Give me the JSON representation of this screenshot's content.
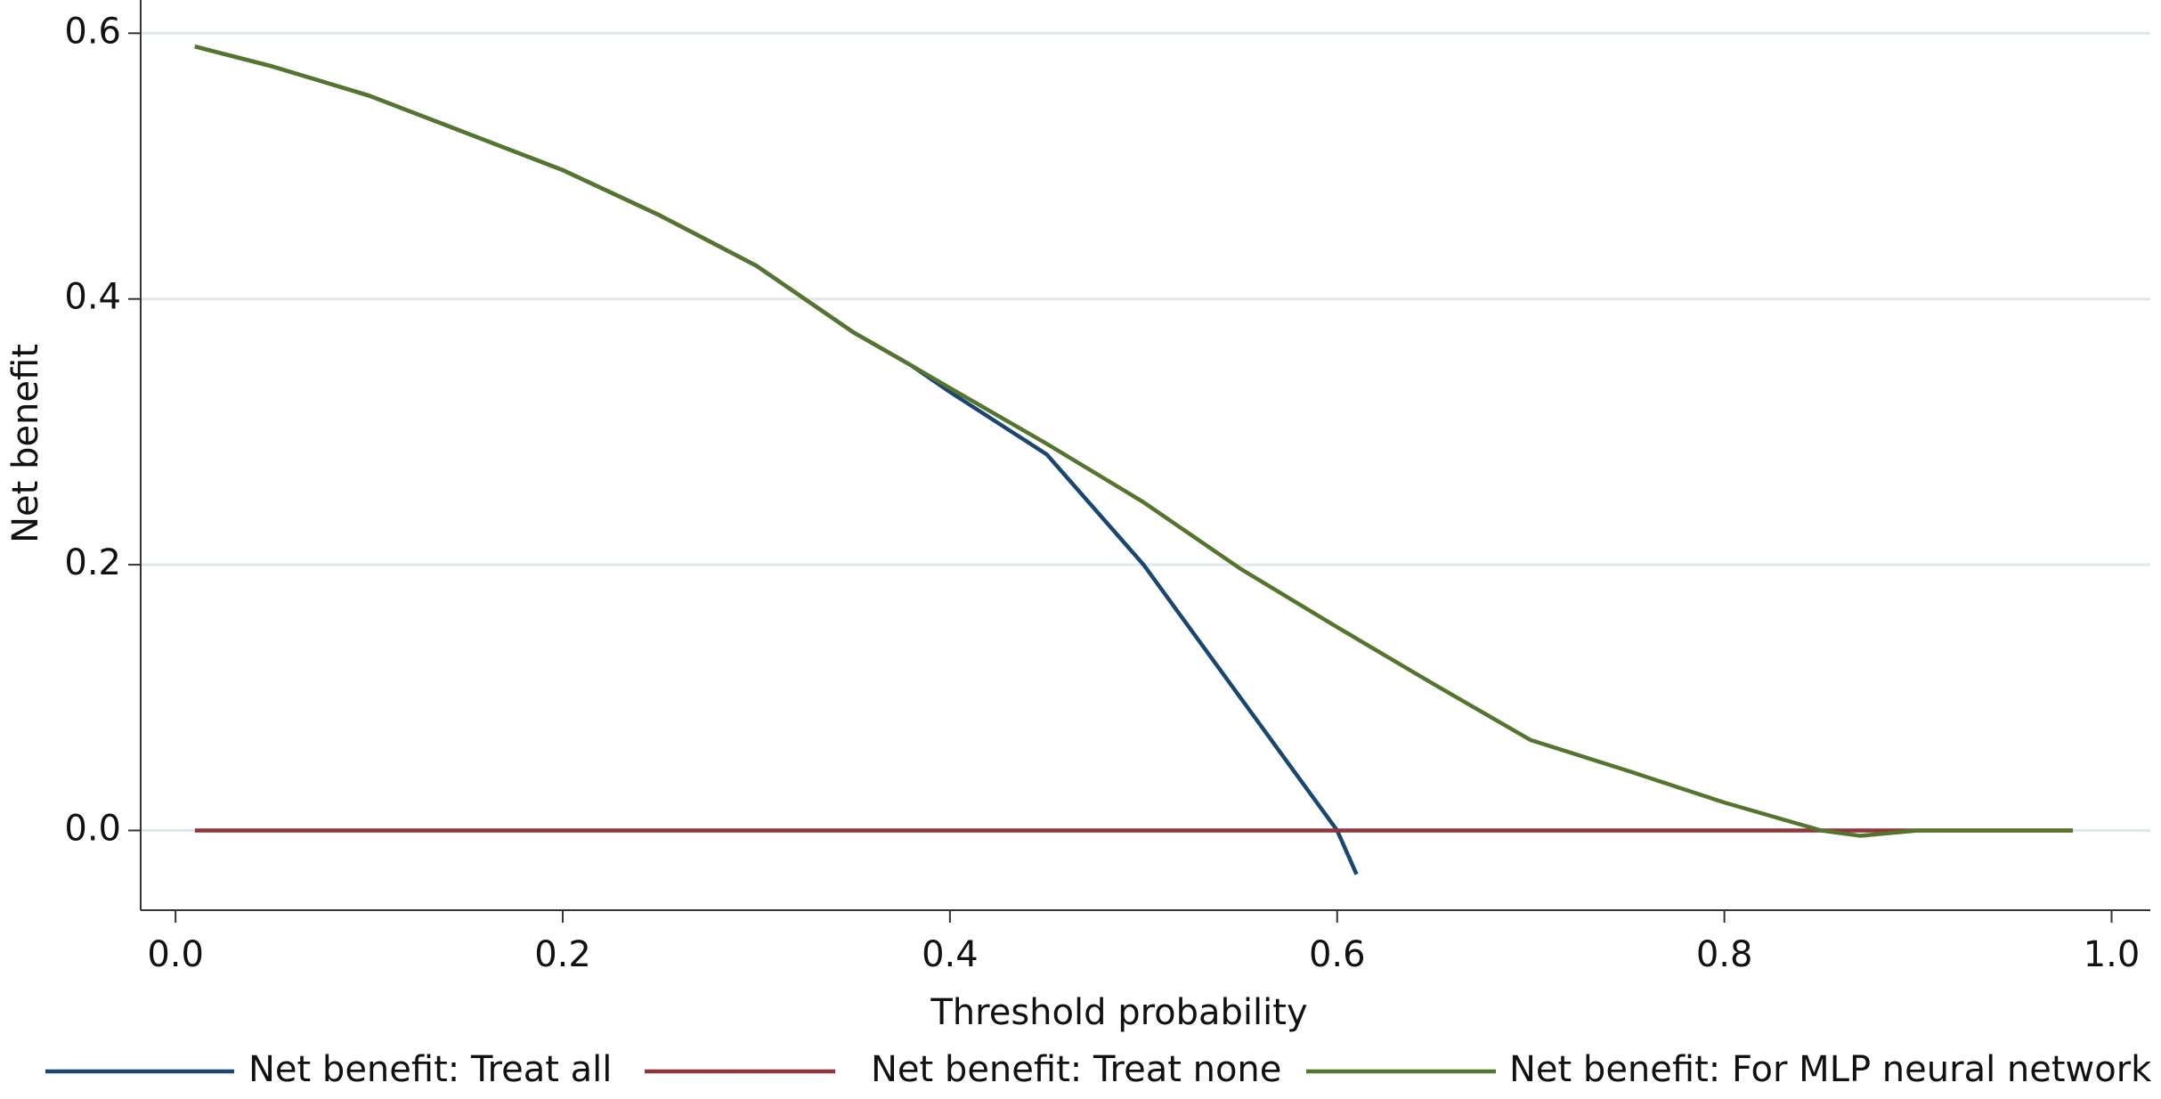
{
  "chart_data": {
    "type": "line",
    "xlabel": "Threshold probability",
    "ylabel": "Net benefit",
    "xlim": [
      -0.018,
      1.02
    ],
    "ylim": [
      -0.06,
      0.625
    ],
    "xticks": [
      {
        "value": 0,
        "label": "0.0"
      },
      0.2,
      0.4,
      0.6,
      0.8,
      {
        "value": 1,
        "label": "1.0"
      }
    ],
    "yticks": [
      {
        "value": 0,
        "label": "0.0"
      },
      0.2,
      0.4,
      0.6
    ],
    "grid": true,
    "legend": "bottom",
    "series": [
      {
        "name": "Net benefit: Treat all",
        "color": "#1a476f",
        "x": [
          0.01,
          0.05,
          0.1,
          0.15,
          0.2,
          0.25,
          0.3,
          0.35,
          0.38,
          0.4,
          0.45,
          0.5,
          0.55,
          0.6,
          0.61
        ],
        "values": [
          0.59,
          0.575,
          0.553,
          0.525,
          0.497,
          0.463,
          0.425,
          0.375,
          0.35,
          0.33,
          0.283,
          0.2,
          0.1,
          0.0,
          -0.033
        ]
      },
      {
        "name": "Net benefit: Treat none",
        "color": "#90353b",
        "x": [
          0.01,
          0.98
        ],
        "values": [
          0,
          0
        ]
      },
      {
        "name": "Net benefit: For MLP neural network",
        "color": "#55752f",
        "x": [
          0.01,
          0.05,
          0.1,
          0.15,
          0.2,
          0.25,
          0.3,
          0.35,
          0.38,
          0.4,
          0.45,
          0.5,
          0.55,
          0.6,
          0.65,
          0.7,
          0.75,
          0.8,
          0.85,
          0.87,
          0.9,
          0.95,
          0.98
        ],
        "values": [
          0.59,
          0.575,
          0.553,
          0.525,
          0.497,
          0.463,
          0.425,
          0.375,
          0.35,
          0.333,
          0.291,
          0.247,
          0.197,
          0.153,
          0.11,
          0.068,
          0.045,
          0.021,
          0.0,
          -0.004,
          0.0,
          0.0,
          0.0
        ]
      }
    ]
  }
}
